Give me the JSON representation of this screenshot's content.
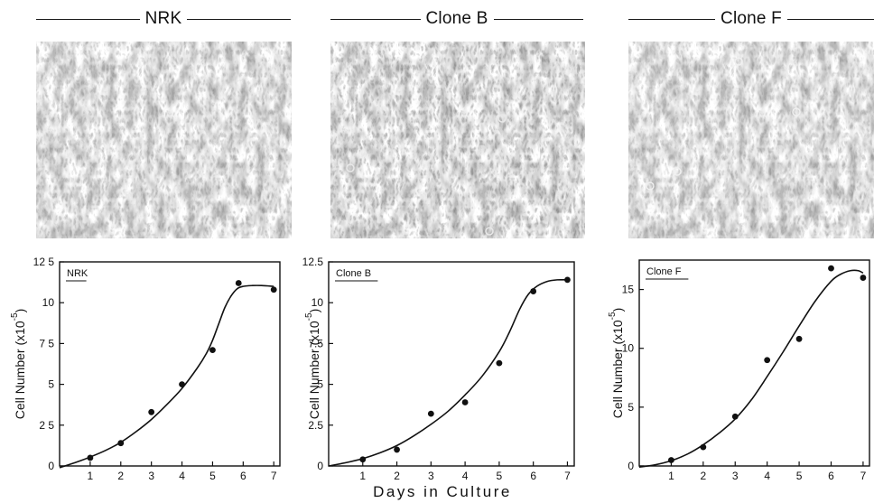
{
  "shared_xlabel": "Days in Culture",
  "panels": [
    {
      "title": "NRK",
      "micrograph_alt": "NRK cell monolayer micrograph",
      "chart": {
        "label": "NRK",
        "ylabel": "Cell Number (x10",
        "ylabel_sup": "-5",
        "ylabel_close": ")",
        "yticks": [
          0,
          2.5,
          5,
          7.5,
          10,
          12.5
        ],
        "yticklabels": [
          "0",
          "2 5",
          "5",
          "7 5",
          "10",
          "12 5"
        ],
        "xticks": [
          1,
          2,
          3,
          4,
          5,
          6,
          7
        ],
        "xticklabels": [
          "1",
          "2",
          "3",
          "4",
          "5",
          "6",
          "7"
        ]
      }
    },
    {
      "title": "Clone B",
      "micrograph_alt": "Clone B cell monolayer micrograph",
      "chart": {
        "label": "Clone B",
        "ylabel": "Cell Number (x10",
        "ylabel_sup": "-5",
        "ylabel_close": ")",
        "yticks": [
          0,
          2.5,
          5,
          7.5,
          10,
          12.5
        ],
        "yticklabels": [
          "0",
          "2.5",
          "5",
          "7.5",
          "10",
          "12.5"
        ],
        "xticks": [
          1,
          2,
          3,
          4,
          5,
          6,
          7
        ],
        "xticklabels": [
          "1",
          "2",
          "3",
          "4",
          "5",
          "6",
          "7"
        ]
      }
    },
    {
      "title": "Clone F",
      "micrograph_alt": "Clone F cell monolayer micrograph",
      "chart": {
        "label": "Clone F",
        "ylabel": "Cell Number (x10",
        "ylabel_sup": "-5",
        "ylabel_close": ")",
        "yticks": [
          0,
          5,
          10,
          15
        ],
        "yticklabels": [
          "0",
          "5",
          "10",
          "15"
        ],
        "xticks": [
          1,
          2,
          3,
          4,
          5,
          6,
          7
        ],
        "xticklabels": [
          "1",
          "2",
          "3",
          "4",
          "5",
          "6",
          "7"
        ]
      }
    }
  ],
  "chart_data": [
    {
      "type": "scatter",
      "title": "NRK",
      "xlabel": "Days in Culture",
      "ylabel": "Cell Number (x10-5)",
      "xlim": [
        0,
        7.2
      ],
      "ylim": [
        0,
        12.5
      ],
      "series": [
        {
          "kind": "points",
          "x": [
            1,
            2,
            3,
            4,
            5,
            5.85,
            7
          ],
          "y": [
            0.5,
            1.4,
            3.3,
            5.0,
            7.1,
            11.2,
            10.8
          ]
        },
        {
          "kind": "fit-curve",
          "x": [
            0,
            0.5,
            1,
            1.5,
            2,
            2.5,
            3,
            3.5,
            4,
            4.5,
            4.8,
            5,
            5.2,
            5.4,
            5.6,
            5.8,
            6,
            6.3,
            6.6,
            7
          ],
          "y": [
            -0.1,
            0.2,
            0.55,
            0.95,
            1.45,
            2.1,
            2.85,
            3.75,
            4.75,
            6.0,
            6.9,
            7.7,
            8.7,
            9.7,
            10.4,
            10.85,
            11.0,
            11.05,
            11.05,
            11.0
          ]
        }
      ]
    },
    {
      "type": "scatter",
      "title": "Clone B",
      "xlabel": "Days in Culture",
      "ylabel": "Cell Number (x10-5)",
      "xlim": [
        0,
        7.2
      ],
      "ylim": [
        0,
        12.5
      ],
      "series": [
        {
          "kind": "points",
          "x": [
            1,
            2,
            3,
            4,
            5,
            6,
            7
          ],
          "y": [
            0.4,
            1.0,
            3.2,
            3.9,
            6.3,
            10.7,
            11.4
          ]
        },
        {
          "kind": "fit-curve",
          "x": [
            0,
            0.5,
            1,
            1.5,
            2,
            2.5,
            3,
            3.5,
            4,
            4.5,
            5,
            5.3,
            5.6,
            5.85,
            6.1,
            6.4,
            6.7,
            7
          ],
          "y": [
            0.0,
            0.2,
            0.45,
            0.8,
            1.25,
            1.85,
            2.55,
            3.35,
            4.35,
            5.5,
            7.0,
            8.2,
            9.6,
            10.5,
            11.0,
            11.3,
            11.4,
            11.4
          ]
        }
      ]
    },
    {
      "type": "scatter",
      "title": "Clone F",
      "xlabel": "Days in Culture",
      "ylabel": "Cell Number (x10-5)",
      "xlim": [
        0,
        7.2
      ],
      "ylim": [
        0,
        17.5
      ],
      "series": [
        {
          "kind": "points",
          "x": [
            1,
            2,
            3,
            4,
            5,
            6,
            7
          ],
          "y": [
            0.5,
            1.6,
            4.2,
            9.0,
            10.8,
            16.8,
            16.0
          ]
        },
        {
          "kind": "fit-curve",
          "x": [
            0,
            0.5,
            1,
            1.5,
            2,
            2.5,
            3,
            3.5,
            4,
            4.5,
            5,
            5.5,
            6,
            6.3,
            6.6,
            6.85,
            7
          ],
          "y": [
            -0.1,
            0.1,
            0.45,
            1.0,
            1.8,
            2.8,
            4.0,
            5.6,
            7.6,
            9.7,
            11.9,
            14.0,
            15.7,
            16.3,
            16.6,
            16.6,
            16.4
          ]
        }
      ]
    }
  ]
}
